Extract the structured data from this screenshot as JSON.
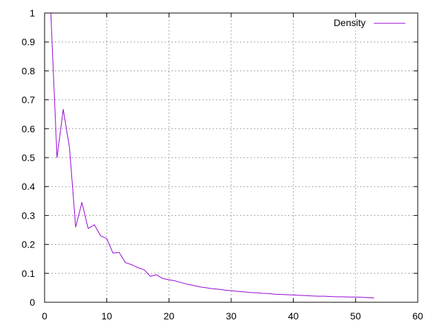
{
  "chart_data": {
    "type": "line",
    "title": "",
    "xlabel": "",
    "ylabel": "",
    "xlim": [
      0,
      60
    ],
    "ylim": [
      0,
      1
    ],
    "x_ticks": [
      0,
      10,
      20,
      30,
      40,
      50,
      60
    ],
    "y_ticks": [
      0,
      0.1,
      0.2,
      0.3,
      0.4,
      0.5,
      0.6,
      0.7,
      0.8,
      0.9,
      1
    ],
    "grid": true,
    "legend_position": "top-right",
    "series": [
      {
        "name": "Density",
        "color": "#9400d3",
        "x": [
          1,
          2,
          3,
          4,
          5,
          6,
          7,
          8,
          9,
          10,
          11,
          12,
          13,
          14,
          15,
          16,
          17,
          18,
          19,
          20,
          21,
          22,
          23,
          24,
          25,
          26,
          27,
          28,
          29,
          30,
          31,
          32,
          33,
          34,
          35,
          36,
          37,
          38,
          39,
          40,
          41,
          42,
          43,
          44,
          45,
          46,
          47,
          48,
          49,
          50,
          51,
          52,
          53
        ],
        "values": [
          1.0,
          0.5,
          0.667,
          0.535,
          0.26,
          0.345,
          0.255,
          0.268,
          0.23,
          0.22,
          0.17,
          0.172,
          0.137,
          0.13,
          0.12,
          0.112,
          0.09,
          0.095,
          0.082,
          0.078,
          0.074,
          0.068,
          0.062,
          0.058,
          0.053,
          0.05,
          0.047,
          0.045,
          0.042,
          0.04,
          0.038,
          0.036,
          0.034,
          0.033,
          0.031,
          0.03,
          0.028,
          0.027,
          0.026,
          0.025,
          0.024,
          0.023,
          0.022,
          0.021,
          0.021,
          0.02,
          0.019,
          0.019,
          0.018,
          0.018,
          0.017,
          0.016,
          0.015
        ]
      }
    ]
  }
}
